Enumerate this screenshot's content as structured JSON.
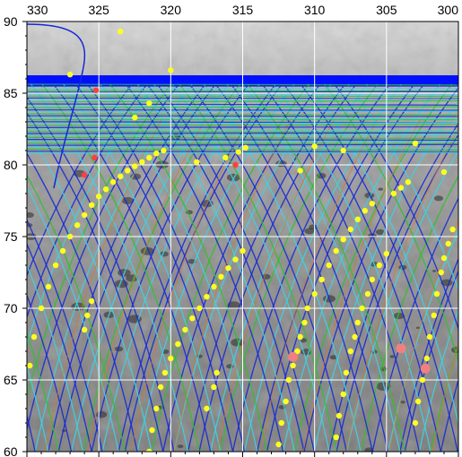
{
  "map": {
    "x_ticks": [
      330,
      325,
      320,
      315,
      310,
      305,
      300
    ],
    "y_ticks": [
      90,
      85,
      80,
      75,
      70,
      65,
      60
    ],
    "x_range": [
      330,
      300
    ],
    "y_range": [
      60,
      90
    ],
    "grid": true,
    "colors": {
      "track_blue": "#1428d8",
      "track_cyan": "#40d0e0",
      "track_green": "#30c030",
      "track_orange": "#d87828",
      "footprint_yellow": "#ffff20",
      "footprint_red": "#ff4040",
      "footprint_pink": "#f08080",
      "polar_band_blue": "#0010ff",
      "grid_white": "#ffffff"
    }
  },
  "chart_data": {
    "type": "scatter",
    "x_axis": {
      "ticks": [
        330,
        325,
        320,
        315,
        310,
        305,
        300
      ],
      "range": [
        330,
        300
      ]
    },
    "y_axis": {
      "ticks": [
        90,
        85,
        80,
        75,
        70,
        65,
        60
      ],
      "range": [
        60,
        90
      ]
    },
    "grid": true,
    "series": [
      {
        "marker": "yellow-dot",
        "points": [
          [
            329.8,
            66
          ],
          [
            329.5,
            68
          ],
          [
            329,
            70
          ],
          [
            328.5,
            71.5
          ],
          [
            328,
            73
          ],
          [
            327.5,
            74
          ],
          [
            327,
            75
          ],
          [
            326.5,
            75.8
          ],
          [
            326,
            76.5
          ],
          [
            325.5,
            77.2
          ],
          [
            325,
            77.8
          ],
          [
            324.5,
            78.3
          ],
          [
            324,
            78.8
          ],
          [
            323.5,
            79.2
          ],
          [
            323,
            79.6
          ],
          [
            322.5,
            79.9
          ],
          [
            322,
            80.2
          ],
          [
            321.5,
            80.5
          ],
          [
            321,
            80.8
          ],
          [
            320.5,
            81
          ],
          [
            326,
            68.5
          ],
          [
            325.8,
            69.5
          ],
          [
            325.5,
            70.5
          ],
          [
            321.5,
            60
          ],
          [
            321.3,
            61.5
          ],
          [
            321,
            63
          ],
          [
            320.7,
            64.5
          ],
          [
            320.4,
            65.5
          ],
          [
            320,
            66.5
          ],
          [
            319.5,
            67.5
          ],
          [
            319,
            68.5
          ],
          [
            318.5,
            69.3
          ],
          [
            318,
            70
          ],
          [
            317.5,
            70.8
          ],
          [
            317,
            71.5
          ],
          [
            316.5,
            72.2
          ],
          [
            316,
            72.8
          ],
          [
            315.5,
            73.4
          ],
          [
            315,
            74
          ],
          [
            317.5,
            63
          ],
          [
            317,
            64.5
          ],
          [
            316.8,
            65.5
          ],
          [
            312.5,
            60.5
          ],
          [
            312.3,
            62
          ],
          [
            312,
            63.5
          ],
          [
            311.8,
            65
          ],
          [
            311.5,
            66
          ],
          [
            311.2,
            67
          ],
          [
            311,
            68
          ],
          [
            310.7,
            69
          ],
          [
            310.5,
            70
          ],
          [
            310,
            71
          ],
          [
            309.5,
            72
          ],
          [
            309,
            73
          ],
          [
            308.5,
            74
          ],
          [
            308,
            74.8
          ],
          [
            307.5,
            75.5
          ],
          [
            307,
            76.2
          ],
          [
            306.5,
            76.8
          ],
          [
            306,
            77.3
          ],
          [
            304.5,
            78
          ],
          [
            304,
            78.4
          ],
          [
            303.5,
            78.8
          ],
          [
            308.5,
            61
          ],
          [
            308.3,
            62.5
          ],
          [
            308,
            64
          ],
          [
            307.8,
            65.5
          ],
          [
            307.5,
            67
          ],
          [
            307.2,
            68
          ],
          [
            307,
            69
          ],
          [
            306.7,
            70
          ],
          [
            306.3,
            71
          ],
          [
            306,
            72
          ],
          [
            305.5,
            73
          ],
          [
            305,
            73.8
          ],
          [
            303,
            62
          ],
          [
            302.8,
            63.5
          ],
          [
            302.5,
            65
          ],
          [
            302.2,
            66.5
          ],
          [
            302,
            68
          ],
          [
            301.7,
            69.5
          ],
          [
            301.5,
            71
          ],
          [
            301.2,
            72.5
          ],
          [
            301,
            73.5
          ],
          [
            300.7,
            74.5
          ],
          [
            300.4,
            75.5
          ],
          [
            314.8,
            81.2
          ],
          [
            315.3,
            80.9
          ],
          [
            316.2,
            80.5
          ],
          [
            318.2,
            80.2
          ],
          [
            310,
            81.3
          ],
          [
            308,
            81
          ],
          [
            303,
            81.5
          ],
          [
            301,
            79.5
          ],
          [
            311,
            79.6
          ],
          [
            323.5,
            89.3
          ],
          [
            327,
            86.3
          ],
          [
            320,
            86.6
          ],
          [
            321.5,
            84.3
          ],
          [
            322.5,
            83.3
          ]
        ]
      },
      {
        "marker": "red-dot",
        "points": [
          [
            325.2,
            85.2
          ],
          [
            325.3,
            80.5
          ],
          [
            326,
            79.3
          ],
          [
            315.5,
            80
          ]
        ]
      },
      {
        "marker": "pink-dot",
        "points": [
          [
            311.5,
            66.6
          ],
          [
            304,
            67.2
          ],
          [
            302.3,
            65.8
          ]
        ]
      }
    ]
  }
}
